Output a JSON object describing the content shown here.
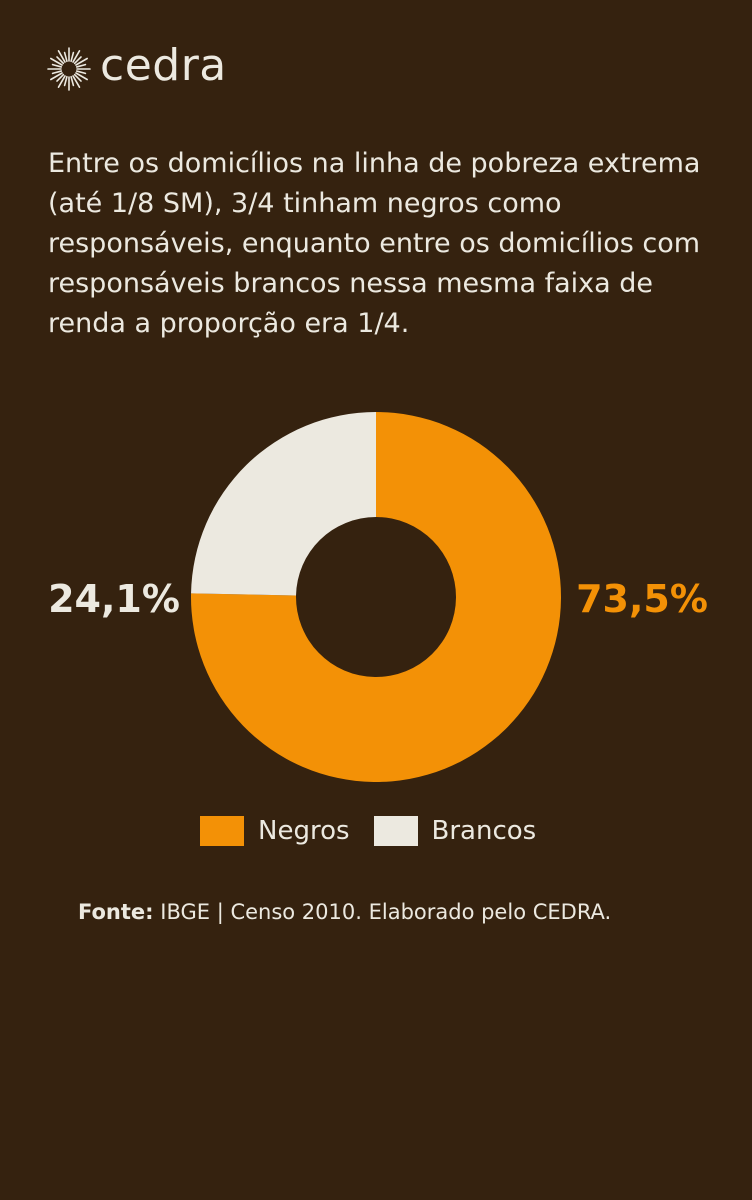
{
  "brand": {
    "logo_text": "cedra",
    "logo_icon": "sunburst-icon"
  },
  "headline": "Entre os domicílios na linha de pobreza extrema (até 1/8 SM), 3/4 tinham negros como responsáveis, enquanto entre os domicílios com responsáveis brancos nessa mesma faixa de renda a proporção era 1/4.",
  "colors": {
    "background": "#35220f",
    "negros": "#f39106",
    "brancos": "#ece9e0",
    "text": "#ece9e0"
  },
  "chart_data": {
    "type": "pie",
    "donut": true,
    "categories": [
      "Negros",
      "Brancos"
    ],
    "values": [
      73.5,
      24.1
    ],
    "data_labels": [
      "73,5%",
      "24,1%"
    ],
    "legend_position": "bottom"
  },
  "source": {
    "label": "Fonte:",
    "text": "IBGE | Censo 2010. Elaborado pelo CEDRA."
  }
}
